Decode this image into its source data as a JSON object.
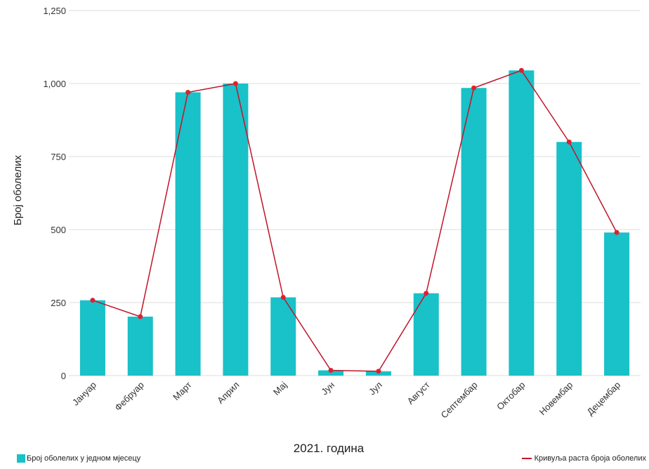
{
  "chart_data": {
    "type": "bar",
    "title": "",
    "xlabel": "2021. година",
    "ylabel": "Број оболелих",
    "ylim": [
      0,
      1250
    ],
    "yticks": [
      0,
      250,
      500,
      750,
      1000,
      1250
    ],
    "ytick_labels": [
      "0",
      "250",
      "500",
      "750",
      "1,000",
      "1,250"
    ],
    "grid": true,
    "legend_position": "bottom",
    "categories": [
      "Јануар",
      "Фебруар",
      "Март",
      "Април",
      "Мај",
      "Јун",
      "Јул",
      "Август",
      "Септембар",
      "Октобар",
      "Новембар",
      "Децембар"
    ],
    "series": [
      {
        "name": "Број оболелих у једном мјесецу",
        "type": "bar",
        "color": "#19c1c8",
        "values": [
          258,
          202,
          970,
          1000,
          268,
          18,
          15,
          282,
          985,
          1045,
          800,
          490
        ]
      },
      {
        "name": "Кривуља раста броја оболелих",
        "type": "line",
        "color": "#c0152b",
        "values": [
          258,
          202,
          970,
          1000,
          268,
          18,
          15,
          282,
          985,
          1045,
          800,
          490
        ]
      }
    ]
  }
}
